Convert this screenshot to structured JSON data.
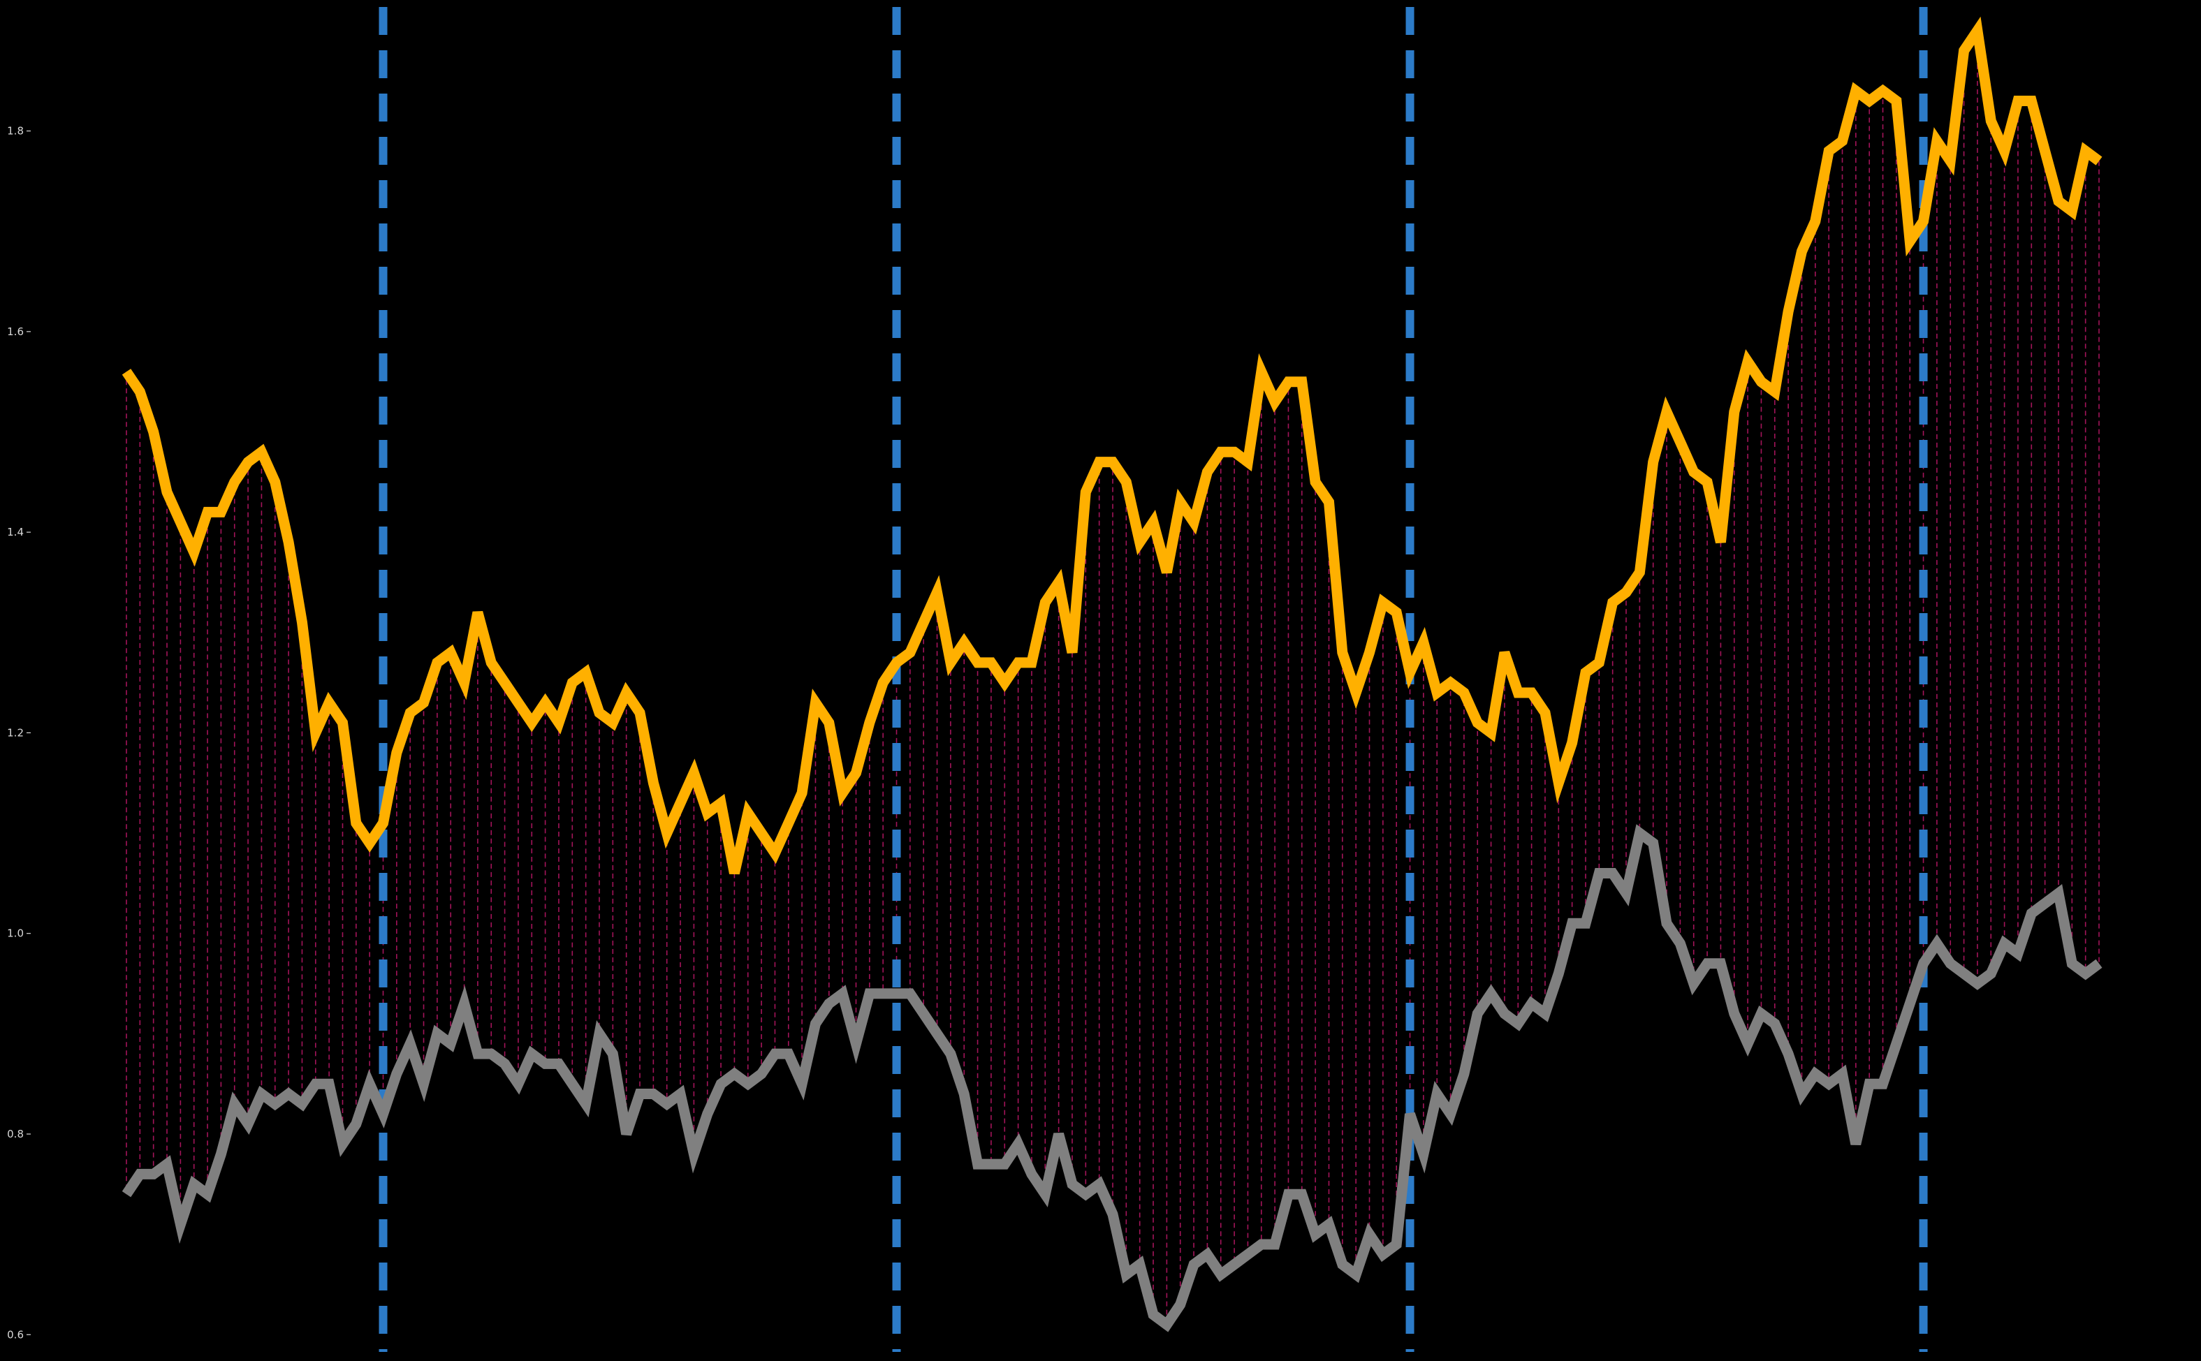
{
  "chart_data": {
    "type": "line",
    "title": "",
    "xlabel": "",
    "ylabel": "",
    "ylim": [
      0.58,
      1.925
    ],
    "x_ticks_visible": false,
    "grid": false,
    "legend": "none",
    "background": "#000000",
    "y_ticks": [
      {
        "value": 0.6,
        "label": "0.6"
      },
      {
        "value": 0.8,
        "label": "0.8"
      },
      {
        "value": 1.0,
        "label": "1.0"
      },
      {
        "value": 1.2,
        "label": "1.2"
      },
      {
        "value": 1.4,
        "label": "1.4"
      },
      {
        "value": 1.6,
        "label": "1.6"
      },
      {
        "value": 1.8,
        "label": "1.8"
      }
    ],
    "x": [
      0,
      1,
      2,
      3,
      4,
      5,
      6,
      7,
      8,
      9,
      10,
      11,
      12,
      13,
      14,
      15,
      16,
      17,
      18,
      19,
      20,
      21,
      22,
      23,
      24,
      25,
      26,
      27,
      28,
      29,
      30,
      31,
      32,
      33,
      34,
      35,
      36,
      37,
      38,
      39,
      40,
      41,
      42,
      43,
      44,
      45,
      46,
      47,
      48,
      49,
      50,
      51,
      52,
      53,
      54,
      55,
      56,
      57,
      58,
      59,
      60,
      61,
      62,
      63,
      64,
      65,
      66,
      67,
      68,
      69,
      70,
      71,
      72,
      73,
      74,
      75,
      76,
      77,
      78,
      79,
      80,
      81,
      82,
      83,
      84,
      85,
      86,
      87,
      88,
      89,
      90,
      91,
      92,
      93,
      94,
      95,
      96,
      97,
      98,
      99,
      100,
      101,
      102,
      103,
      104,
      105,
      106,
      107,
      108,
      109,
      110,
      111,
      112,
      113,
      114,
      115,
      116,
      117,
      118,
      119,
      120,
      121,
      122,
      123,
      124,
      125,
      126,
      127,
      128,
      129,
      130,
      131,
      132,
      133,
      134,
      135,
      136,
      137,
      138,
      139,
      140,
      141,
      142,
      143,
      144,
      145,
      146
    ],
    "series": [
      {
        "color": "#FFB000",
        "values": [
          1.56,
          1.54,
          1.5,
          1.44,
          1.41,
          1.38,
          1.42,
          1.42,
          1.45,
          1.47,
          1.48,
          1.45,
          1.39,
          1.31,
          1.2,
          1.23,
          1.21,
          1.11,
          1.09,
          1.11,
          1.18,
          1.22,
          1.23,
          1.27,
          1.28,
          1.25,
          1.32,
          1.27,
          1.25,
          1.23,
          1.21,
          1.23,
          1.21,
          1.25,
          1.26,
          1.22,
          1.21,
          1.24,
          1.22,
          1.15,
          1.1,
          1.13,
          1.16,
          1.12,
          1.13,
          1.06,
          1.12,
          1.1,
          1.08,
          1.11,
          1.14,
          1.23,
          1.21,
          1.14,
          1.16,
          1.21,
          1.25,
          1.27,
          1.28,
          1.31,
          1.34,
          1.27,
          1.29,
          1.27,
          1.27,
          1.25,
          1.27,
          1.27,
          1.33,
          1.35,
          1.28,
          1.44,
          1.47,
          1.47,
          1.45,
          1.39,
          1.41,
          1.36,
          1.43,
          1.41,
          1.46,
          1.48,
          1.48,
          1.47,
          1.56,
          1.53,
          1.55,
          1.55,
          1.45,
          1.43,
          1.28,
          1.24,
          1.28,
          1.33,
          1.32,
          1.26,
          1.29,
          1.24,
          1.25,
          1.24,
          1.21,
          1.2,
          1.28,
          1.24,
          1.24,
          1.22,
          1.15,
          1.19,
          1.26,
          1.27,
          1.33,
          1.34,
          1.36,
          1.47,
          1.52,
          1.49,
          1.46,
          1.45,
          1.39,
          1.52,
          1.57,
          1.55,
          1.54,
          1.62,
          1.68,
          1.71,
          1.78,
          1.79,
          1.84,
          1.83,
          1.84,
          1.83,
          1.69,
          1.71,
          1.79,
          1.77,
          1.88,
          1.9,
          1.81,
          1.78,
          1.83,
          1.83,
          1.78,
          1.73,
          1.72,
          1.78,
          1.77
        ]
      },
      {
        "color": "#808080",
        "values": [
          0.74,
          0.76,
          0.76,
          0.77,
          0.71,
          0.75,
          0.74,
          0.78,
          0.83,
          0.81,
          0.84,
          0.83,
          0.84,
          0.83,
          0.85,
          0.85,
          0.79,
          0.81,
          0.85,
          0.82,
          0.86,
          0.89,
          0.85,
          0.9,
          0.89,
          0.93,
          0.88,
          0.88,
          0.87,
          0.85,
          0.88,
          0.87,
          0.87,
          0.85,
          0.83,
          0.9,
          0.88,
          0.8,
          0.84,
          0.84,
          0.83,
          0.84,
          0.78,
          0.82,
          0.85,
          0.86,
          0.85,
          0.86,
          0.88,
          0.88,
          0.85,
          0.91,
          0.93,
          0.94,
          0.89,
          0.94,
          0.94,
          0.94,
          0.94,
          0.92,
          0.9,
          0.88,
          0.84,
          0.77,
          0.77,
          0.77,
          0.79,
          0.76,
          0.74,
          0.8,
          0.75,
          0.74,
          0.75,
          0.72,
          0.66,
          0.67,
          0.62,
          0.61,
          0.63,
          0.67,
          0.68,
          0.66,
          0.67,
          0.68,
          0.69,
          0.69,
          0.74,
          0.74,
          0.7,
          0.71,
          0.67,
          0.66,
          0.7,
          0.68,
          0.69,
          0.82,
          0.78,
          0.84,
          0.82,
          0.86,
          0.92,
          0.94,
          0.92,
          0.91,
          0.93,
          0.92,
          0.96,
          1.01,
          1.01,
          1.06,
          1.06,
          1.04,
          1.1,
          1.09,
          1.01,
          0.99,
          0.95,
          0.97,
          0.97,
          0.92,
          0.89,
          0.92,
          0.91,
          0.88,
          0.84,
          0.86,
          0.85,
          0.86,
          0.79,
          0.85,
          0.85,
          0.89,
          0.93,
          0.97,
          0.99,
          0.97,
          0.96,
          0.95,
          0.96,
          0.99,
          0.98,
          1.02,
          1.03,
          1.04,
          0.97,
          0.96,
          0.97
        ]
      }
    ],
    "vertical_lines": [
      19,
      57,
      95,
      133
    ],
    "vertical_line_color": "#2C7BC8",
    "fill_between_color": "#C0186A"
  }
}
